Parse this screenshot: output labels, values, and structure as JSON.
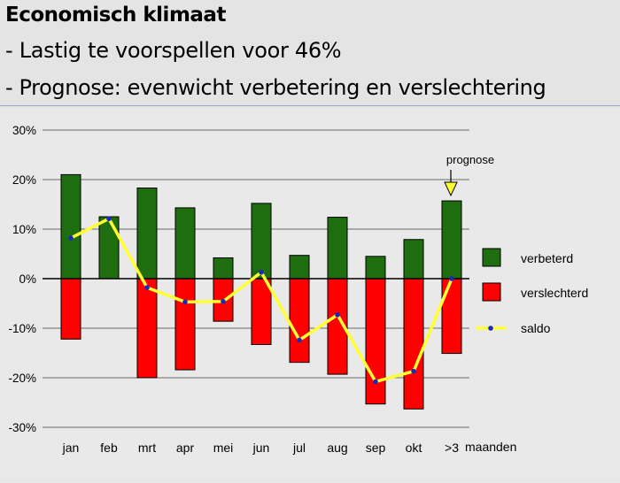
{
  "header": {
    "title": "Economisch klimaat",
    "bullet1": "- Lastig te voorspellen voor 46%",
    "bullet2": "- Prognose: evenwicht verbetering en verslechtering"
  },
  "colors": {
    "improved": "#1e6e10",
    "worsened": "#ff0000",
    "balance": "#ffff33",
    "balance_marker": "#1a2ab8",
    "arrow": "#ffff33"
  },
  "chart_data": {
    "type": "bar",
    "categories": [
      "jan",
      "feb",
      "mrt",
      "apr",
      "mei",
      "jun",
      "jul",
      "aug",
      "sep",
      "okt",
      ">3"
    ],
    "series": [
      {
        "name": "verbeterd",
        "values": [
          21,
          12.5,
          18.3,
          14.3,
          4.2,
          15.2,
          4.7,
          12.4,
          4.5,
          7.9,
          15.7
        ]
      },
      {
        "name": "verslechterd",
        "values": [
          -12.2,
          0,
          -20,
          -18.4,
          -8.6,
          -13.3,
          -16.9,
          -19.3,
          -25.3,
          -26.3,
          -15.1
        ]
      },
      {
        "name": "saldo",
        "type": "line",
        "values": [
          8.2,
          12.1,
          -1.8,
          -4.7,
          -4.6,
          1.3,
          -12.4,
          -7.3,
          -20.8,
          -18.7,
          0
        ]
      }
    ],
    "ylim": [
      -30,
      30
    ],
    "yticks": [
      30,
      20,
      10,
      0,
      -10,
      -20,
      -30
    ],
    "ytick_labels": [
      "30%",
      "20%",
      "10%",
      "0%",
      "-10%",
      "-20%",
      "-30%"
    ],
    "xlabel": "maanden",
    "annotation": {
      "text": "prognose",
      "category": ">3"
    },
    "grid": true,
    "legend_position": "right"
  }
}
